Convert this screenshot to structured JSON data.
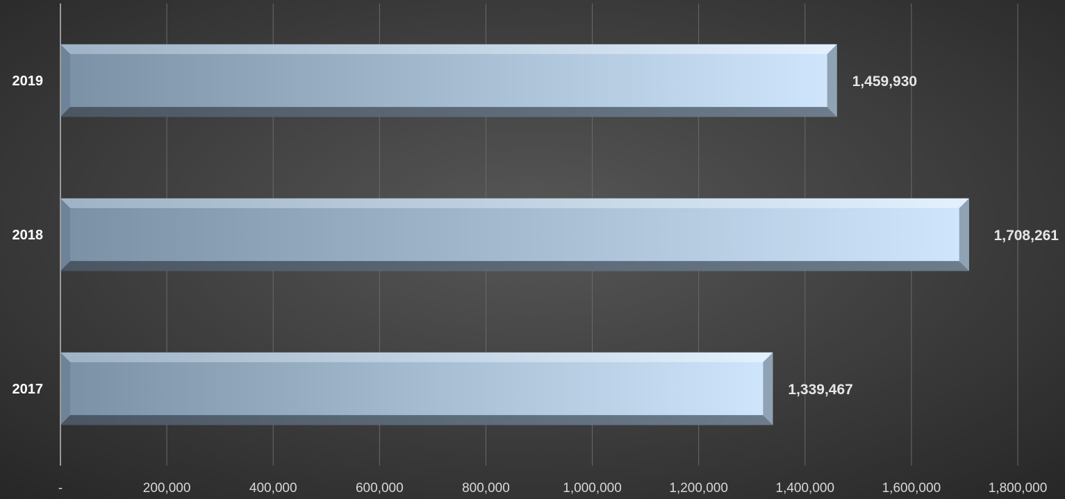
{
  "chart_data": {
    "type": "bar",
    "orientation": "horizontal",
    "title": "",
    "xlabel": "",
    "ylabel": "",
    "categories": [
      "2019",
      "2018",
      "2017"
    ],
    "values": [
      1459930,
      1708261,
      1339467
    ],
    "data_labels": [
      "1,459,930",
      "1,708,261",
      "1,339,467"
    ],
    "xlim": [
      0,
      1800000
    ],
    "x_ticks": [
      0,
      200000,
      400000,
      600000,
      800000,
      1000000,
      1200000,
      1400000,
      1600000,
      1800000
    ],
    "x_tick_labels": [
      "-",
      "200,000",
      "400,000",
      "600,000",
      "800,000",
      "1,000,000",
      "1,200,000",
      "1,400,000",
      "1,600,000",
      "1,800,000"
    ],
    "grid": true,
    "legend": "none",
    "colors": {
      "bar_start": "#7a90a4",
      "bar_end": "#cfe6fc",
      "background_center": "#555555",
      "background_edge": "#262626",
      "gridline": "#6a6a6a"
    }
  }
}
